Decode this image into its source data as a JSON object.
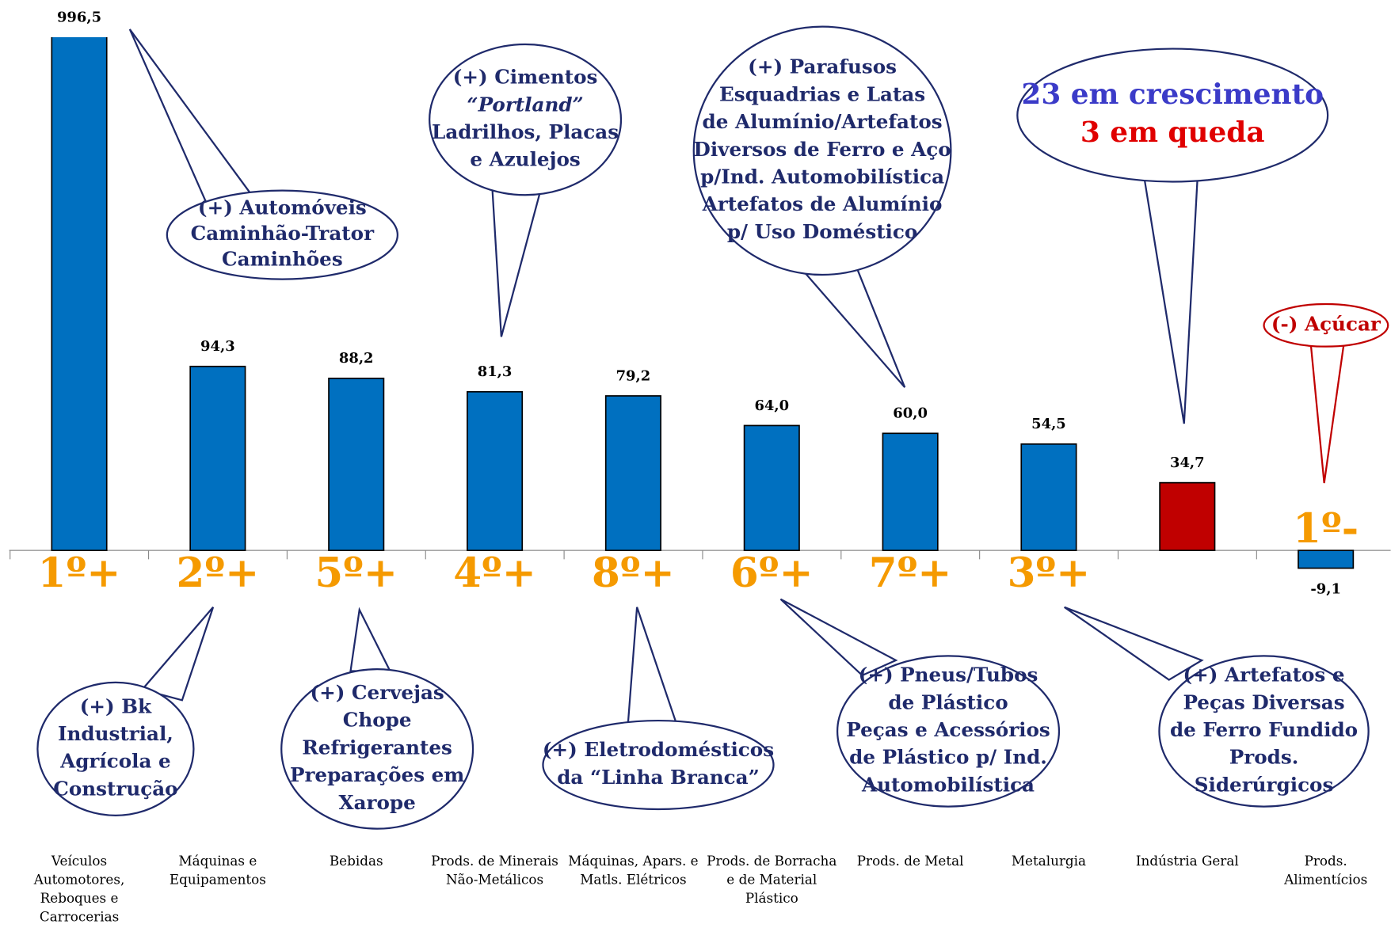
{
  "chart_data": {
    "type": "bar",
    "categories": [
      "Veículos Automotores, Reboques e Carrocerias",
      "Máquinas e Equipamentos",
      "Bebidas",
      "Prods. de Minerais Não-Metálicos",
      "Máquinas, Apars. e Matls. Elétricos",
      "Prods. de Borracha e de Material Plástico",
      "Prods. de Metal",
      "Metalurgia",
      "Indústria Geral",
      "Prods. Alimentícios"
    ],
    "values": [
      996.5,
      94.3,
      88.2,
      81.3,
      79.2,
      64.0,
      60.0,
      54.5,
      34.7,
      -9.1
    ],
    "value_labels": [
      "996,5",
      "94,3",
      "88,2",
      "81,3",
      "79,2",
      "64,0",
      "60,0",
      "54,5",
      "34,7",
      "-9,1"
    ],
    "colors": [
      "#0070c0",
      "#0070c0",
      "#0070c0",
      "#0070c0",
      "#0070c0",
      "#0070c0",
      "#0070c0",
      "#0070c0",
      "#c00000",
      "#0070c0"
    ],
    "ranks": [
      "1º+",
      "2º+",
      "5º+",
      "4º+",
      "8º+",
      "6º+",
      "7º+",
      "3º+",
      null,
      "1º-"
    ],
    "ylim": [
      -15,
      263
    ],
    "annotations": [
      {
        "lines": [
          "(+) Automóveis",
          "Caminhão-Trator",
          "Caminhões"
        ]
      },
      {
        "lines": [
          "(+) Cimentos",
          "“Portland”",
          "Ladrilhos, Placas",
          "e Azulejos"
        ]
      },
      {
        "lines": [
          "(+) Parafusos",
          "Esquadrias e Latas",
          "de Alumínio/Artefatos",
          "Diversos de Ferro e Aço",
          "p/Ind. Automobilística",
          "Artefatos de Alumínio",
          "p/ Uso Doméstico"
        ]
      },
      {
        "lines": [
          "23 em crescimento",
          "3 em queda"
        ]
      },
      {
        "lines": [
          "(-) Açúcar"
        ]
      },
      {
        "lines": [
          "(+) Bk",
          "Industrial,",
          "Agrícola e",
          "Construção"
        ]
      },
      {
        "lines": [
          "(+) Cervejas",
          "Chope",
          "Refrigerantes",
          "Preparações em",
          "Xarope"
        ]
      },
      {
        "lines": [
          "(+) Eletrodomésticos",
          "da “Linha Branca”"
        ]
      },
      {
        "lines": [
          "(+) Pneus/Tubos",
          "de Plástico",
          "Peças e Acessórios",
          "de Plástico  p/ Ind.",
          "Automobilística"
        ]
      },
      {
        "lines": [
          "(+) Artefatos e",
          "Peças Diversas",
          "de Ferro Fundido",
          "Prods.",
          "Siderúrgicos"
        ]
      }
    ]
  }
}
